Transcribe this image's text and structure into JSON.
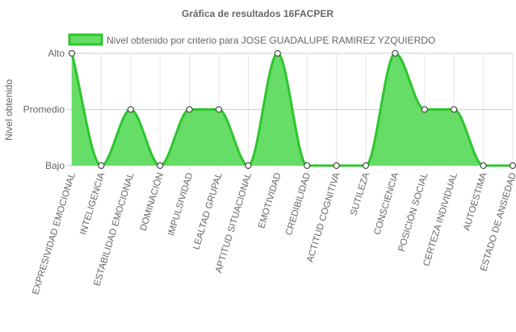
{
  "chart_data": {
    "type": "area",
    "title": "Gráfica de resultados 16FACPER",
    "ylabel": "Nivel obtenido",
    "xlabel": "",
    "y_ticks": [
      "Bajo",
      "Promedio",
      "Alto"
    ],
    "ylim": [
      0,
      2
    ],
    "grid": true,
    "legend_position": "top",
    "categories": [
      "EXPRESIVIDAD EMOCIONAL",
      "INTELIGENCIA",
      "ESTABILIDAD EMOCIONAL",
      "DOMINACIÓN",
      "IMPULSIVIDAD",
      "LEALTAD GRUPAL",
      "APTITUD SITUACIONAL",
      "EMOTIVIDAD",
      "CREDIBILIDAD",
      "ACTITUD COGNITIVA",
      "SUTILEZA",
      "CONSCIENCIA",
      "POSICIÓN SOCIAL",
      "CERTEZA INDIVIDUAL",
      "AUTOESTIMA",
      "ESTADO DE ANSIEDAD"
    ],
    "series": [
      {
        "name": "Nivel obtenido por criterio para JOSE GUADALUPE RAMIREZ YZQUIERDO",
        "values": [
          2,
          0,
          1,
          0,
          1,
          1,
          0,
          2,
          0,
          0,
          0,
          2,
          1,
          1,
          0,
          0
        ]
      }
    ],
    "colors": {
      "line": "#2ec52e",
      "fill": "#66dd66",
      "grid": "#e6e6e6",
      "axis": "#cccccc",
      "text": "#666666"
    }
  }
}
